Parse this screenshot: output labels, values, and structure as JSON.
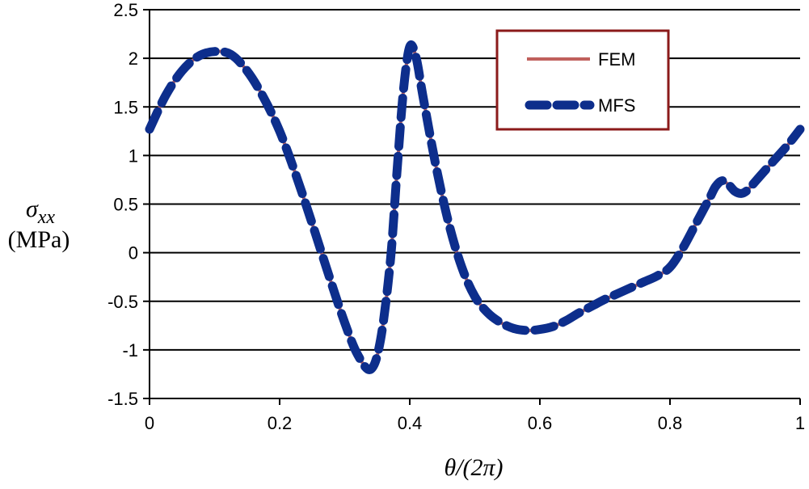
{
  "chart_data": {
    "type": "line",
    "title": "",
    "xlabel": "θ/(2π)",
    "ylabel": {
      "symbol": "σ",
      "subscript": "xx",
      "unit": "(MPa)"
    },
    "xlim": [
      0,
      1
    ],
    "ylim": [
      -1.5,
      2.5
    ],
    "x_ticks": [
      0,
      0.2,
      0.4,
      0.6,
      0.8,
      1
    ],
    "x_tick_labels": [
      "0",
      "0.2",
      "0.4",
      "0.6",
      "0.8",
      "1"
    ],
    "y_ticks": [
      -1.5,
      -1,
      -0.5,
      0,
      0.5,
      1,
      1.5,
      2,
      2.5
    ],
    "y_tick_labels": [
      "-1.5",
      "-1",
      "-0.5",
      "0",
      "0.5",
      "1",
      "1.5",
      "2",
      "2.5"
    ],
    "grid": "horizontal",
    "legend_position": "top-right",
    "series": [
      {
        "name": "FEM",
        "style": "solid",
        "color": "#C0605C",
        "x": [
          0,
          0.025,
          0.05,
          0.075,
          0.1,
          0.125,
          0.15,
          0.175,
          0.2,
          0.225,
          0.25,
          0.275,
          0.3,
          0.32,
          0.34,
          0.355,
          0.37,
          0.38,
          0.39,
          0.4,
          0.41,
          0.42,
          0.44,
          0.46,
          0.48,
          0.5,
          0.52,
          0.54,
          0.56,
          0.58,
          0.6,
          0.62,
          0.64,
          0.66,
          0.68,
          0.7,
          0.72,
          0.74,
          0.76,
          0.78,
          0.8,
          0.82,
          0.84,
          0.86,
          0.87,
          0.88,
          0.89,
          0.9,
          0.91,
          0.92,
          0.94,
          0.96,
          0.98,
          1.0
        ],
        "values": [
          1.27,
          1.62,
          1.87,
          2.02,
          2.07,
          2.04,
          1.87,
          1.6,
          1.25,
          0.8,
          0.3,
          -0.22,
          -0.72,
          -1.05,
          -1.2,
          -0.9,
          -0.1,
          0.8,
          1.65,
          2.12,
          2.0,
          1.62,
          0.9,
          0.3,
          -0.15,
          -0.45,
          -0.62,
          -0.72,
          -0.78,
          -0.8,
          -0.79,
          -0.76,
          -0.7,
          -0.62,
          -0.55,
          -0.48,
          -0.42,
          -0.36,
          -0.3,
          -0.24,
          -0.15,
          0.05,
          0.3,
          0.55,
          0.68,
          0.74,
          0.7,
          0.63,
          0.61,
          0.65,
          0.8,
          0.95,
          1.1,
          1.27
        ]
      },
      {
        "name": "MFS",
        "style": "dashed",
        "color": "#0D2E8C",
        "x": [
          0,
          0.025,
          0.05,
          0.075,
          0.1,
          0.125,
          0.15,
          0.175,
          0.2,
          0.225,
          0.25,
          0.275,
          0.3,
          0.32,
          0.34,
          0.355,
          0.37,
          0.38,
          0.39,
          0.4,
          0.41,
          0.42,
          0.44,
          0.46,
          0.48,
          0.5,
          0.52,
          0.54,
          0.56,
          0.58,
          0.6,
          0.62,
          0.64,
          0.66,
          0.68,
          0.7,
          0.72,
          0.74,
          0.76,
          0.78,
          0.8,
          0.82,
          0.84,
          0.86,
          0.87,
          0.88,
          0.89,
          0.9,
          0.91,
          0.92,
          0.94,
          0.96,
          0.98,
          1.0
        ],
        "values": [
          1.27,
          1.62,
          1.87,
          2.02,
          2.07,
          2.04,
          1.87,
          1.6,
          1.25,
          0.8,
          0.3,
          -0.22,
          -0.72,
          -1.05,
          -1.2,
          -0.9,
          -0.1,
          0.8,
          1.65,
          2.12,
          2.0,
          1.62,
          0.9,
          0.3,
          -0.15,
          -0.45,
          -0.62,
          -0.72,
          -0.78,
          -0.8,
          -0.79,
          -0.76,
          -0.7,
          -0.62,
          -0.55,
          -0.48,
          -0.42,
          -0.36,
          -0.3,
          -0.24,
          -0.15,
          0.05,
          0.3,
          0.55,
          0.68,
          0.74,
          0.7,
          0.63,
          0.61,
          0.65,
          0.8,
          0.95,
          1.1,
          1.27
        ]
      }
    ],
    "legend_border_color": "#8B1A1A"
  }
}
